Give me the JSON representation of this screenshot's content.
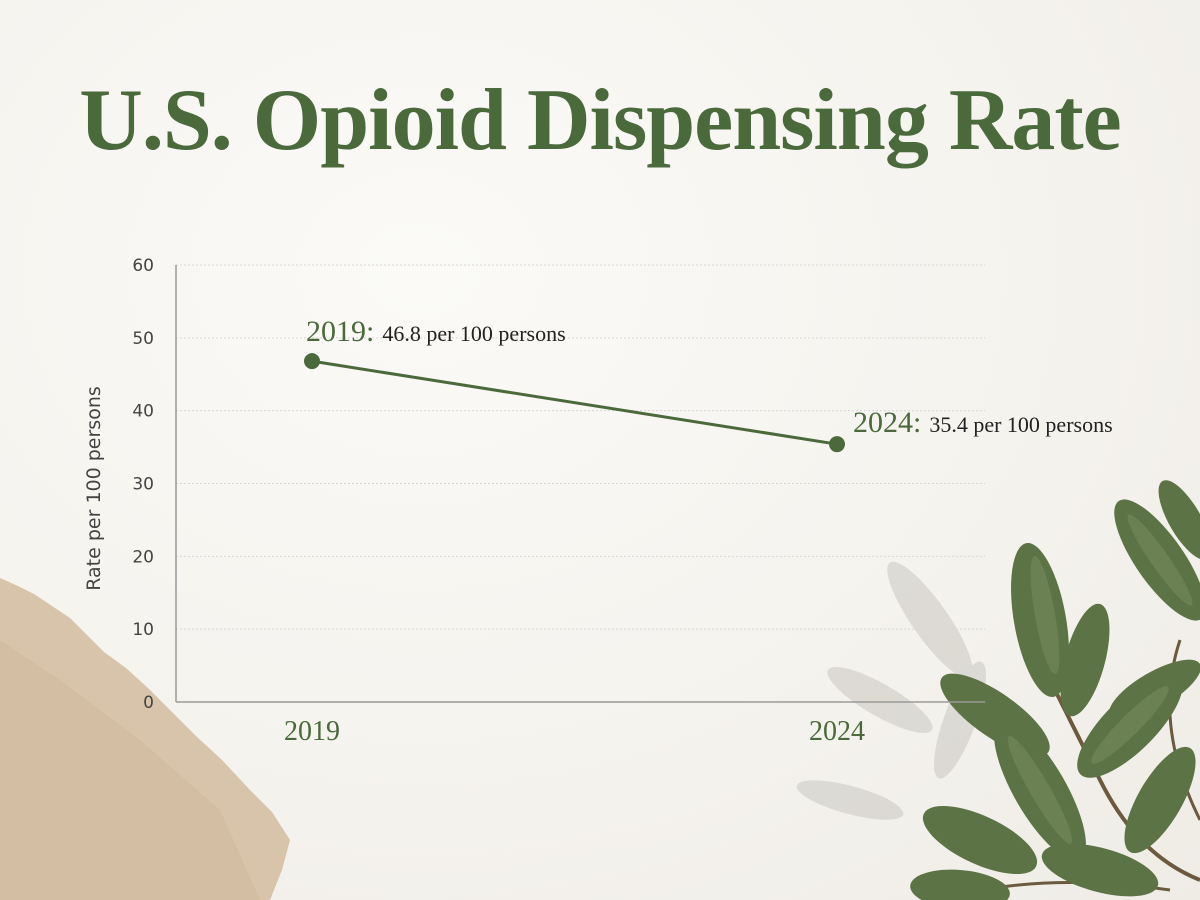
{
  "chart_data": {
    "type": "line",
    "title": "U.S. Opioid Dispensing Rate",
    "xlabel": "",
    "ylabel": "Rate per 100 persons",
    "categories": [
      "2019",
      "2024"
    ],
    "series": [
      {
        "values": [
          46.8,
          35.4
        ],
        "color": "#4a6a3c"
      }
    ],
    "ylim": [
      0,
      60
    ],
    "yticks": [
      0,
      10,
      20,
      30,
      40,
      50,
      60
    ],
    "grid": true,
    "legend": "none",
    "annotations": [
      {
        "year_label": "2019:",
        "value_label": "46.8 per 100 persons"
      },
      {
        "year_label": "2024:",
        "value_label": "35.4 per 100 persons"
      }
    ]
  },
  "colors": {
    "accent": "#4a6a3c",
    "text": "#222222",
    "axis": "#9a9a9a",
    "grid": "#d8d6d0"
  }
}
